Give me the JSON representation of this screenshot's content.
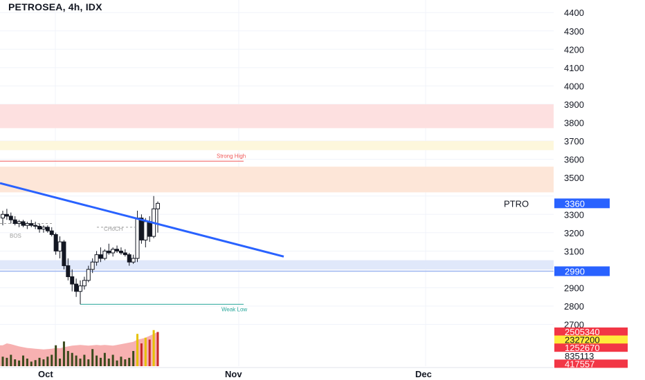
{
  "header": {
    "title": "PETROSEA, 4h, IDX"
  },
  "chart_data": {
    "type": "candlestick",
    "symbol": "PETROSEA",
    "interval": "4h",
    "exchange": "IDX",
    "ylim": [
      2700,
      4400
    ],
    "y_ticks": [
      2700,
      2800,
      2900,
      3000,
      3100,
      3200,
      3300,
      3400,
      3500,
      3600,
      3700,
      3800,
      3900,
      4000,
      4100,
      4200,
      4300,
      4400
    ],
    "y_tick_labels": [
      {
        "value": 2800,
        "label": "2800"
      },
      {
        "value": 2900,
        "label": "2900"
      },
      {
        "value": 3100,
        "label": "3100"
      },
      {
        "value": 3200,
        "label": "3200"
      },
      {
        "value": 3300,
        "label": "3300"
      },
      {
        "value": 3360,
        "label": "3360"
      },
      {
        "value": 3500,
        "label": "3500"
      },
      {
        "value": 3600,
        "label": "3600"
      },
      {
        "value": 3700,
        "label": "3700"
      },
      {
        "value": 3800,
        "label": "3800"
      },
      {
        "value": 3900,
        "label": "3900"
      },
      {
        "value": 4000,
        "label": "4000"
      },
      {
        "value": 4100,
        "label": "4100"
      },
      {
        "value": 4200,
        "label": "4200"
      },
      {
        "value": 4300,
        "label": "4300"
      },
      {
        "value": 4400,
        "label": "4400"
      },
      {
        "value": 2700,
        "label": "2700"
      }
    ],
    "x_labels": [
      "Oct",
      "Nov",
      "Dec"
    ],
    "price_labels": [
      {
        "text": "3360",
        "value": 3360,
        "color": "#2962ff"
      },
      {
        "text": "2990",
        "value": 2990,
        "color": "#2962ff"
      }
    ],
    "symbol_label": {
      "text": "PTRO",
      "value": 3360
    },
    "zones": [
      {
        "from": 3770,
        "to": 3900,
        "color": "#fde0e0"
      },
      {
        "from": 3650,
        "to": 3700,
        "color": "#fdf7dc"
      },
      {
        "from": 3420,
        "to": 3560,
        "color": "#fde6d8"
      },
      {
        "from": 3000,
        "to": 3050,
        "color": "#e0e8fa"
      }
    ],
    "levels": [
      {
        "label": "Strong High",
        "value": 3590,
        "color": "#f05a5a"
      },
      {
        "label": "Weak Low",
        "value": 2810,
        "color": "#26a69a"
      }
    ],
    "structure_labels": [
      {
        "text": "BOS",
        "value": 3225
      },
      {
        "text": "CHoCH",
        "value": 3215
      }
    ],
    "trendline": {
      "start": 3470,
      "end": 3070,
      "color": "#2962ff"
    },
    "candles": [
      {
        "o": 3280,
        "h": 3320,
        "l": 3240,
        "c": 3300
      },
      {
        "o": 3300,
        "h": 3330,
        "l": 3270,
        "c": 3290
      },
      {
        "o": 3290,
        "h": 3310,
        "l": 3250,
        "c": 3270
      },
      {
        "o": 3270,
        "h": 3290,
        "l": 3240,
        "c": 3250
      },
      {
        "o": 3250,
        "h": 3270,
        "l": 3230,
        "c": 3260
      },
      {
        "o": 3260,
        "h": 3270,
        "l": 3230,
        "c": 3240
      },
      {
        "o": 3240,
        "h": 3260,
        "l": 3220,
        "c": 3250
      },
      {
        "o": 3250,
        "h": 3270,
        "l": 3230,
        "c": 3240
      },
      {
        "o": 3240,
        "h": 3260,
        "l": 3220,
        "c": 3235
      },
      {
        "o": 3235,
        "h": 3250,
        "l": 3200,
        "c": 3220
      },
      {
        "o": 3220,
        "h": 3240,
        "l": 3200,
        "c": 3230
      },
      {
        "o": 3230,
        "h": 3240,
        "l": 3200,
        "c": 3210
      },
      {
        "o": 3210,
        "h": 3230,
        "l": 3180,
        "c": 3190
      },
      {
        "o": 3190,
        "h": 3200,
        "l": 3080,
        "c": 3100
      },
      {
        "o": 3100,
        "h": 3180,
        "l": 3060,
        "c": 3150
      },
      {
        "o": 3150,
        "h": 3160,
        "l": 3000,
        "c": 3020
      },
      {
        "o": 3020,
        "h": 3060,
        "l": 2940,
        "c": 2960
      },
      {
        "o": 2960,
        "h": 3000,
        "l": 2880,
        "c": 2920
      },
      {
        "o": 2920,
        "h": 2950,
        "l": 2850,
        "c": 2880
      },
      {
        "o": 2880,
        "h": 2940,
        "l": 2810,
        "c": 2910
      },
      {
        "o": 2910,
        "h": 2960,
        "l": 2890,
        "c": 2940
      },
      {
        "o": 2940,
        "h": 3020,
        "l": 2930,
        "c": 3000
      },
      {
        "o": 3000,
        "h": 3060,
        "l": 2980,
        "c": 3040
      },
      {
        "o": 3040,
        "h": 3100,
        "l": 3020,
        "c": 3080
      },
      {
        "o": 3080,
        "h": 3120,
        "l": 3040,
        "c": 3060
      },
      {
        "o": 3060,
        "h": 3110,
        "l": 3050,
        "c": 3100
      },
      {
        "o": 3100,
        "h": 3140,
        "l": 3080,
        "c": 3090
      },
      {
        "o": 3090,
        "h": 3120,
        "l": 3070,
        "c": 3110
      },
      {
        "o": 3110,
        "h": 3130,
        "l": 3090,
        "c": 3100
      },
      {
        "o": 3100,
        "h": 3120,
        "l": 3080,
        "c": 3090
      },
      {
        "o": 3090,
        "h": 3110,
        "l": 3070,
        "c": 3080
      },
      {
        "o": 3080,
        "h": 3090,
        "l": 3020,
        "c": 3040
      },
      {
        "o": 3040,
        "h": 3080,
        "l": 3030,
        "c": 3060
      },
      {
        "o": 3060,
        "h": 3320,
        "l": 3040,
        "c": 3280
      },
      {
        "o": 3280,
        "h": 3300,
        "l": 3140,
        "c": 3160
      },
      {
        "o": 3160,
        "h": 3280,
        "l": 3120,
        "c": 3260
      },
      {
        "o": 3260,
        "h": 3290,
        "l": 3150,
        "c": 3180
      },
      {
        "o": 3180,
        "h": 3400,
        "l": 3170,
        "c": 3330
      },
      {
        "o": 3330,
        "h": 3370,
        "l": 3200,
        "c": 3360
      }
    ],
    "volume_labels": [
      {
        "text": "2505340",
        "bg": "#f23645",
        "color": "#ffffff"
      },
      {
        "text": "2327200",
        "bg": "#ffeb3b",
        "color": "#131722"
      },
      {
        "text": "1252670",
        "bg": "#f23645",
        "color": "#ffffff"
      },
      {
        "text": "835113",
        "bg": "none",
        "color": "#131722"
      },
      {
        "text": "417557",
        "bg": "#f23645",
        "color": "#ffffff"
      }
    ],
    "volume": [
      0.25,
      0.22,
      0.3,
      0.18,
      0.15,
      0.28,
      0.2,
      0.12,
      0.16,
      0.22,
      0.18,
      0.25,
      0.3,
      0.55,
      0.2,
      0.65,
      0.4,
      0.35,
      0.28,
      0.2,
      0.3,
      0.18,
      0.45,
      0.28,
      0.22,
      0.35,
      0.2,
      0.3,
      0.15,
      0.25,
      0.18,
      0.22,
      0.4,
      0.85,
      0.6,
      0.75,
      0.7,
      0.95,
      0.9
    ],
    "volume_area": [
      0.55,
      0.6,
      0.58,
      0.55,
      0.52,
      0.5,
      0.48,
      0.47,
      0.46,
      0.45,
      0.44,
      0.45,
      0.46,
      0.48,
      0.47,
      0.5,
      0.52,
      0.54,
      0.55,
      0.56,
      0.55,
      0.54,
      0.55,
      0.56,
      0.55,
      0.56,
      0.55,
      0.54,
      0.56,
      0.58,
      0.6,
      0.62,
      0.64,
      0.7,
      0.72,
      0.75,
      0.8,
      0.85,
      0.9
    ]
  }
}
